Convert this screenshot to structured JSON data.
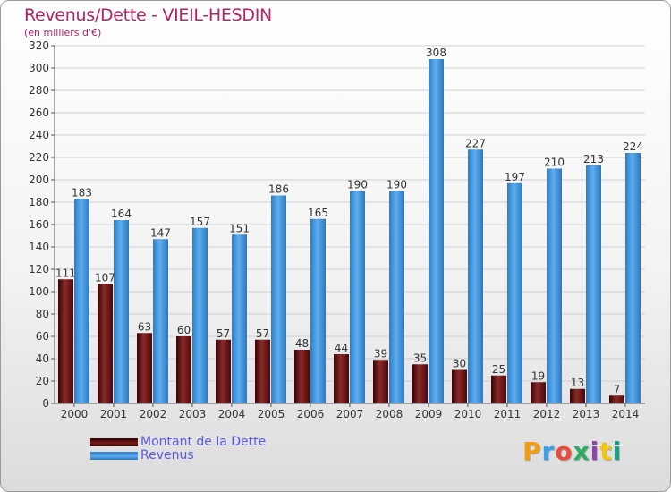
{
  "chart_data": {
    "type": "bar",
    "title": "Revenus/Dette - VIEIL-HESDIN",
    "subtitle": "(en milliers d'€)",
    "categories": [
      "2000",
      "2001",
      "2002",
      "2003",
      "2004",
      "2005",
      "2006",
      "2007",
      "2008",
      "2009",
      "2010",
      "2011",
      "2012",
      "2013",
      "2014"
    ],
    "series": [
      {
        "name": "Montant de la Dette",
        "values": [
          111,
          107,
          63,
          60,
          57,
          57,
          48,
          44,
          39,
          35,
          30,
          25,
          19,
          13,
          7
        ],
        "color": "#7a1a1a"
      },
      {
        "name": "Revenus",
        "values": [
          183,
          164,
          147,
          157,
          151,
          186,
          165,
          190,
          190,
          308,
          227,
          197,
          210,
          213,
          224
        ],
        "color": "#4a9de6"
      }
    ],
    "ylim": [
      0,
      320
    ],
    "yticks": [
      0,
      20,
      40,
      60,
      80,
      100,
      120,
      140,
      160,
      180,
      200,
      220,
      240,
      260,
      280,
      300,
      320
    ],
    "grid": true,
    "xlabel": "",
    "ylabel": "",
    "legend": "bottom-left"
  },
  "branding": {
    "logo_text": "Proxiti",
    "logo_colors": [
      "#f39c12",
      "#3aa0e8",
      "#e74c3c",
      "#27ae60",
      "#8e44ad",
      "#f1c40f",
      "#16a085"
    ]
  }
}
